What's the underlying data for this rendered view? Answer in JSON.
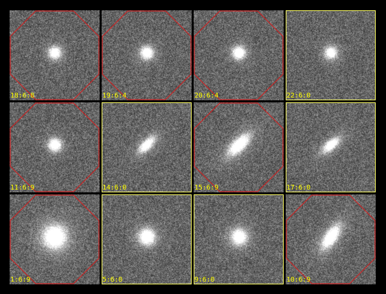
{
  "colors": {
    "background": "#000000",
    "selected_frame": "#ffff66",
    "octagon": "#cc2222",
    "label": "#ffff00"
  },
  "galaxy_icon": "galaxy-cutout-icon",
  "tiles": [
    {
      "label": "18:6:8",
      "octagon": true,
      "frame": false,
      "galaxy": {
        "shape": "round",
        "size": "small",
        "brightness": 0.85,
        "tilt": 0
      }
    },
    {
      "label": "19:6:4",
      "octagon": true,
      "frame": false,
      "galaxy": {
        "shape": "round",
        "size": "small",
        "brightness": 0.95,
        "tilt": 0
      }
    },
    {
      "label": "20:6:4",
      "octagon": true,
      "frame": false,
      "galaxy": {
        "shape": "round",
        "size": "small",
        "brightness": 0.95,
        "tilt": 0
      }
    },
    {
      "label": "22:6:0",
      "octagon": false,
      "frame": true,
      "galaxy": {
        "shape": "round",
        "size": "small",
        "brightness": 0.8,
        "tilt": 0
      }
    },
    {
      "label": "11:6:9",
      "octagon": true,
      "frame": false,
      "galaxy": {
        "shape": "round",
        "size": "small",
        "brightness": 0.95,
        "tilt": 0
      }
    },
    {
      "label": "14:6:0",
      "octagon": false,
      "frame": true,
      "galaxy": {
        "shape": "oval",
        "size": "small",
        "brightness": 0.85,
        "tilt": -45
      }
    },
    {
      "label": "15:6:9",
      "octagon": true,
      "frame": false,
      "galaxy": {
        "shape": "oval",
        "size": "medium",
        "brightness": 0.95,
        "tilt": -45
      }
    },
    {
      "label": "17:6:0",
      "octagon": false,
      "frame": true,
      "galaxy": {
        "shape": "oval",
        "size": "small",
        "brightness": 0.85,
        "tilt": -40
      }
    },
    {
      "label": "1:6:9",
      "octagon": true,
      "frame": false,
      "galaxy": {
        "shape": "round",
        "size": "large",
        "brightness": 1.0,
        "tilt": 0
      }
    },
    {
      "label": "5:6:0",
      "octagon": false,
      "frame": true,
      "galaxy": {
        "shape": "round",
        "size": "medium",
        "brightness": 0.95,
        "tilt": 0
      }
    },
    {
      "label": "9:6:0",
      "octagon": false,
      "frame": true,
      "galaxy": {
        "shape": "round",
        "size": "medium",
        "brightness": 0.9,
        "tilt": 0
      }
    },
    {
      "label": "10:6:9",
      "octagon": true,
      "frame": false,
      "galaxy": {
        "shape": "oval",
        "size": "medium",
        "brightness": 0.95,
        "tilt": -55
      }
    }
  ]
}
